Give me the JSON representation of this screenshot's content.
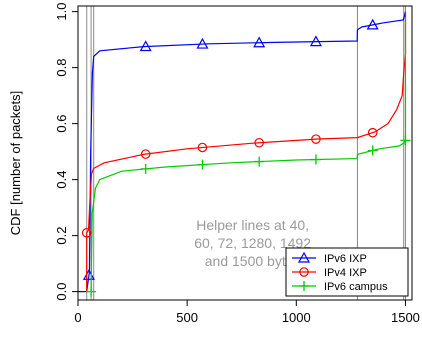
{
  "chart_data": {
    "type": "line",
    "ylabel": "CDF [number of packets]",
    "xlabel": "",
    "xlim": [
      0,
      1530
    ],
    "ylim": [
      -0.03,
      1.02
    ],
    "x_ticks": [
      "0",
      "500",
      "1000",
      "1500"
    ],
    "y_ticks": [
      "0.0",
      "0.2",
      "0.4",
      "0.6",
      "0.8",
      "1.0"
    ],
    "x_tick_values": [
      0,
      500,
      1000,
      1500
    ],
    "y_tick_values": [
      0,
      0.2,
      0.4,
      0.6,
      0.8,
      1.0
    ],
    "helper_lines": [
      40,
      60,
      72,
      1280,
      1492,
      1500
    ],
    "annotation": {
      "lines": [
        "Helper lines at 40,",
        "60, 72, 1280, 1492",
        "and 1500 bytes"
      ],
      "x": 800,
      "y": 0.22
    },
    "legend_position": "bottom-right",
    "series": [
      {
        "name": "IPv6 IXP",
        "color": "#0000ff",
        "marker": "triangle",
        "points": [
          [
            0,
            0.0
          ],
          [
            40,
            0.0
          ],
          [
            52,
            0.07
          ],
          [
            58,
            0.5
          ],
          [
            66,
            0.78
          ],
          [
            72,
            0.84
          ],
          [
            100,
            0.86
          ],
          [
            300,
            0.875
          ],
          [
            600,
            0.885
          ],
          [
            900,
            0.89
          ],
          [
            1100,
            0.893
          ],
          [
            1279,
            0.895
          ],
          [
            1280,
            0.935
          ],
          [
            1300,
            0.945
          ],
          [
            1400,
            0.96
          ],
          [
            1490,
            0.97
          ],
          [
            1492,
            0.975
          ],
          [
            1500,
            1.0
          ]
        ],
        "markers_x": [
          50,
          310,
          570,
          830,
          1090,
          1350
        ]
      },
      {
        "name": "IPv4 IXP",
        "color": "#ff0000",
        "marker": "circle",
        "points": [
          [
            40,
            0.0
          ],
          [
            40,
            0.21
          ],
          [
            48,
            0.22
          ],
          [
            55,
            0.33
          ],
          [
            62,
            0.42
          ],
          [
            72,
            0.44
          ],
          [
            120,
            0.46
          ],
          [
            300,
            0.49
          ],
          [
            500,
            0.51
          ],
          [
            800,
            0.53
          ],
          [
            1100,
            0.545
          ],
          [
            1280,
            0.55
          ],
          [
            1360,
            0.57
          ],
          [
            1420,
            0.6
          ],
          [
            1460,
            0.65
          ],
          [
            1485,
            0.7
          ],
          [
            1492,
            0.78
          ],
          [
            1500,
            0.85
          ],
          [
            1500,
            1.0
          ]
        ],
        "markers_x": [
          40,
          310,
          570,
          830,
          1090,
          1350
        ]
      },
      {
        "name": "IPv6 campus",
        "color": "#00cc00",
        "marker": "plus",
        "points": [
          [
            60,
            0.0
          ],
          [
            65,
            0.28
          ],
          [
            72,
            0.32
          ],
          [
            80,
            0.37
          ],
          [
            100,
            0.4
          ],
          [
            200,
            0.43
          ],
          [
            400,
            0.445
          ],
          [
            700,
            0.46
          ],
          [
            1000,
            0.47
          ],
          [
            1279,
            0.475
          ],
          [
            1280,
            0.49
          ],
          [
            1380,
            0.51
          ],
          [
            1470,
            0.52
          ],
          [
            1492,
            0.53
          ],
          [
            1500,
            0.54
          ],
          [
            1500,
            0.98
          ]
        ],
        "markers_x": [
          60,
          310,
          570,
          830,
          1090,
          1350,
          1500
        ]
      }
    ]
  }
}
